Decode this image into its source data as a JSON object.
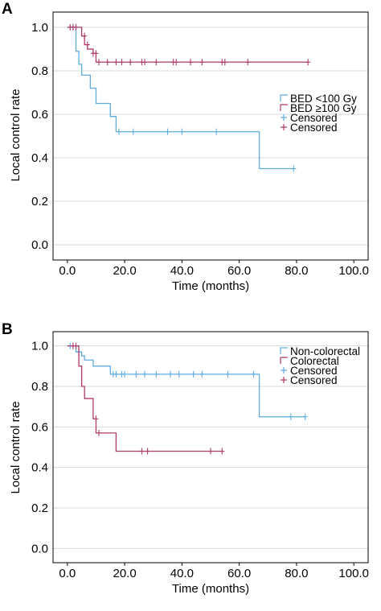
{
  "colors": {
    "series_blue": "#5dade2",
    "series_red": "#b03a6a",
    "grid": "#d9d9d9",
    "axis": "#000000"
  },
  "chart_data": [
    {
      "type": "line",
      "panel_label": "A",
      "xlabel": "Time (months)",
      "ylabel": "Local control rate",
      "xlim": [
        -5,
        105
      ],
      "ylim": [
        -0.07,
        1.07
      ],
      "xticks": [
        0,
        20,
        40,
        60,
        80,
        100
      ],
      "xtick_labels": [
        "0.0",
        "20.0",
        "40.0",
        "60.0",
        "80.0",
        "100.0"
      ],
      "yticks": [
        0,
        0.2,
        0.4,
        0.6,
        0.8,
        1.0
      ],
      "ytick_labels": [
        "0.0",
        "0.2",
        "0.4",
        "0.6",
        "0.8",
        "1.0"
      ],
      "grid": "horizontal",
      "legend_position": "right",
      "legend": [
        "BED <100 Gy",
        "BED ≥100 Gy",
        "Censored",
        "Censored"
      ],
      "series": [
        {
          "name": "BED <100 Gy",
          "color": "#5dade2",
          "step_x": [
            0,
            3,
            4,
            5,
            8,
            10,
            15,
            17,
            67,
            79
          ],
          "step_y": [
            1.0,
            0.89,
            0.83,
            0.78,
            0.72,
            0.65,
            0.59,
            0.52,
            0.35,
            0.35
          ],
          "censored_x": [
            2,
            18,
            23,
            35,
            40,
            52,
            79
          ],
          "censored_y": [
            1.0,
            0.52,
            0.52,
            0.52,
            0.52,
            0.52,
            0.35
          ]
        },
        {
          "name": "BED ≥100 Gy",
          "color": "#b03a6a",
          "step_x": [
            0,
            5,
            6,
            7,
            9,
            10,
            84
          ],
          "step_y": [
            1.0,
            0.96,
            0.92,
            0.9,
            0.88,
            0.84,
            0.84
          ],
          "censored_x": [
            1,
            2,
            3,
            6,
            7,
            9,
            10,
            11,
            14,
            17,
            19,
            22,
            26,
            27,
            31,
            37,
            38,
            43,
            47,
            54,
            55,
            63,
            84
          ],
          "censored_y": [
            1.0,
            1.0,
            1.0,
            0.96,
            0.92,
            0.88,
            0.88,
            0.84,
            0.84,
            0.84,
            0.84,
            0.84,
            0.84,
            0.84,
            0.84,
            0.84,
            0.84,
            0.84,
            0.84,
            0.84,
            0.84,
            0.84,
            0.84
          ]
        }
      ]
    },
    {
      "type": "line",
      "panel_label": "B",
      "xlabel": "Time (months)",
      "ylabel": "Local control rate",
      "xlim": [
        -5,
        105
      ],
      "ylim": [
        -0.07,
        1.07
      ],
      "xticks": [
        0,
        20,
        40,
        60,
        80,
        100
      ],
      "xtick_labels": [
        "0.0",
        "20.0",
        "40.0",
        "60.0",
        "80.0",
        "100.0"
      ],
      "yticks": [
        0,
        0.2,
        0.4,
        0.6,
        0.8,
        1.0
      ],
      "ytick_labels": [
        "0.0",
        "0.2",
        "0.4",
        "0.6",
        "0.8",
        "1.0"
      ],
      "grid": "horizontal",
      "legend_position": "right",
      "legend": [
        "Non-colorectal",
        "Colorectal",
        "Censored",
        "Censored"
      ],
      "series": [
        {
          "name": "Non-colorectal",
          "color": "#5dade2",
          "step_x": [
            0,
            3,
            5,
            6,
            9,
            15,
            67,
            83
          ],
          "step_y": [
            1.0,
            0.97,
            0.95,
            0.93,
            0.9,
            0.86,
            0.65,
            0.65
          ],
          "censored_x": [
            1,
            2,
            4,
            16,
            17,
            19,
            20,
            24,
            27,
            31,
            36,
            39,
            44,
            47,
            56,
            65,
            78,
            83
          ],
          "censored_y": [
            1.0,
            1.0,
            0.97,
            0.86,
            0.86,
            0.86,
            0.86,
            0.86,
            0.86,
            0.86,
            0.86,
            0.86,
            0.86,
            0.86,
            0.86,
            0.86,
            0.65,
            0.65
          ]
        },
        {
          "name": "Colorectal",
          "color": "#b03a6a",
          "step_x": [
            0,
            4,
            5,
            6,
            9,
            10,
            17,
            54
          ],
          "step_y": [
            1.0,
            0.9,
            0.8,
            0.74,
            0.64,
            0.57,
            0.48,
            0.48
          ],
          "censored_x": [
            2,
            3,
            10,
            11,
            26,
            28,
            50,
            54
          ],
          "censored_y": [
            1.0,
            1.0,
            0.64,
            0.57,
            0.48,
            0.48,
            0.48,
            0.48
          ]
        }
      ]
    }
  ]
}
